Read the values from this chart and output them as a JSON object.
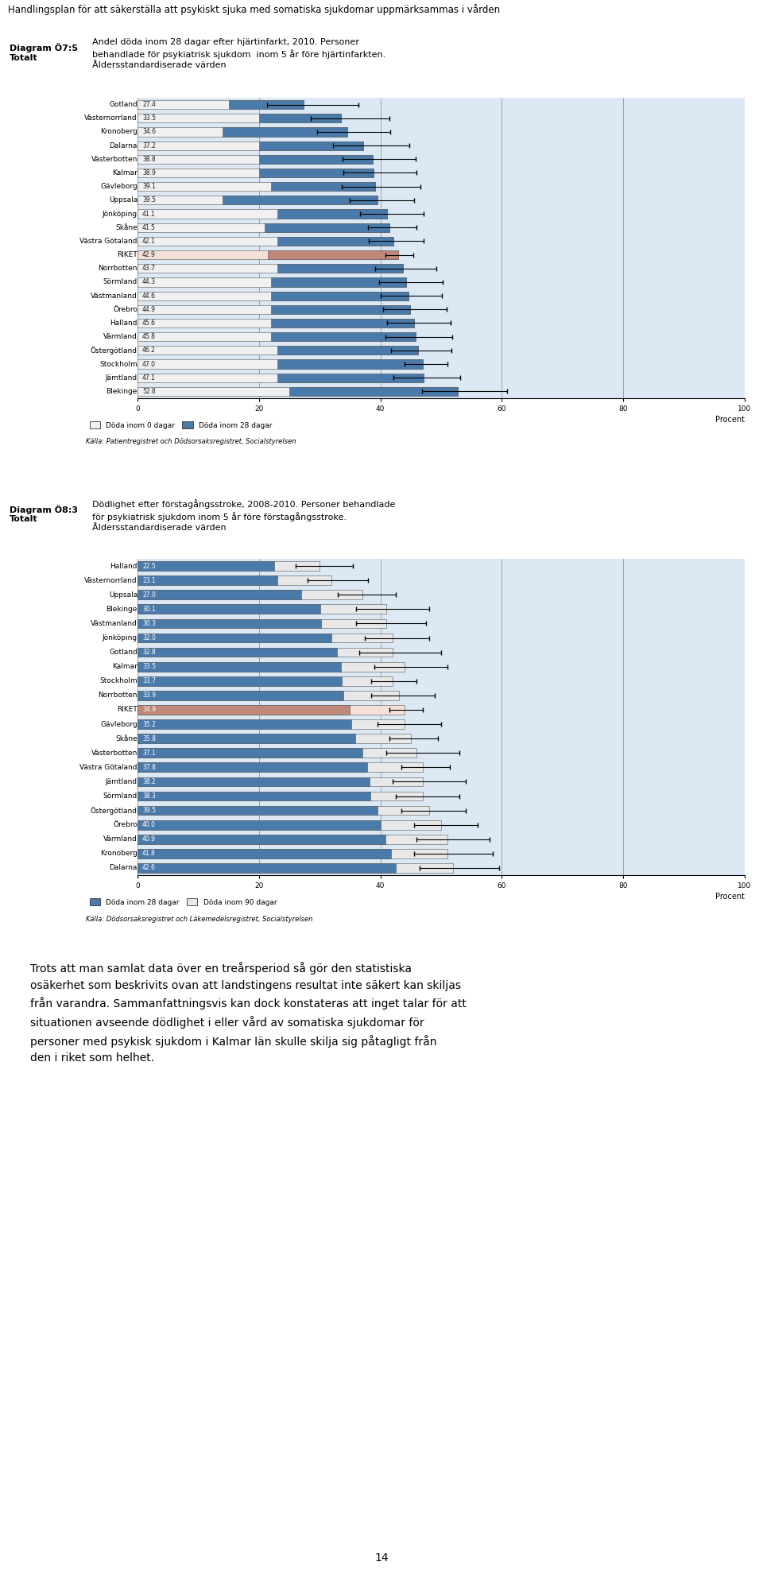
{
  "header": "Handlingsplan för att säkerställa att psykiskt sjuka med somatiska sjukdomar uppmärksammas i vården",
  "chart1": {
    "diagram_label": "Diagram Ö7:5\nTotalt",
    "title_line1": "Andel döda inom 28 dagar efter hjärtinfarkt, 2010. Personer",
    "title_line2": "behandlade för psykiatrisk sjukdom  inom 5 år före hjärtinfarkten.",
    "title_line3": "Åldersstandardiserade värden",
    "categories": [
      "Gotland",
      "Västernorrland",
      "Kronoberg",
      "Dalarna",
      "Västerbotten",
      "Kalmar",
      "Gävleborg",
      "Uppsala",
      "Jönköping",
      "Skåne",
      "Västra Götaland",
      "RIKET",
      "Norrbotten",
      "Sörmland",
      "Västmanland",
      "Örebro",
      "Halland",
      "Värmland",
      "Östergötland",
      "Stockholm",
      "Jämtland",
      "Blekinge"
    ],
    "values_total": [
      27.4,
      33.5,
      34.6,
      37.2,
      38.8,
      38.9,
      39.1,
      39.5,
      41.1,
      41.5,
      42.1,
      42.9,
      43.7,
      44.3,
      44.6,
      44.9,
      45.6,
      45.8,
      46.2,
      47.0,
      47.1,
      52.8
    ],
    "values_0day": [
      15.0,
      20.0,
      14.0,
      20.0,
      20.0,
      20.0,
      22.0,
      14.0,
      23.0,
      21.0,
      23.0,
      21.5,
      23.0,
      22.0,
      22.0,
      22.0,
      22.0,
      22.0,
      23.0,
      23.0,
      23.0,
      25.0
    ],
    "err_lo": [
      6.0,
      5.0,
      5.0,
      5.0,
      5.0,
      5.0,
      5.5,
      4.5,
      4.5,
      3.5,
      4.0,
      2.0,
      4.5,
      4.5,
      4.5,
      4.5,
      4.5,
      5.0,
      4.5,
      3.0,
      5.0,
      6.0
    ],
    "err_hi": [
      9.0,
      8.0,
      7.0,
      7.5,
      7.0,
      7.0,
      7.5,
      6.0,
      6.0,
      4.5,
      5.0,
      2.5,
      5.5,
      6.0,
      5.5,
      6.0,
      6.0,
      6.0,
      5.5,
      4.0,
      6.0,
      8.0
    ],
    "riket_index": 11,
    "bar0_color": "#f0f0f0",
    "bar28_color": "#4a7aaa",
    "riket_bar0_color": "#f5e0d8",
    "riket_bar28_color": "#c08878",
    "xlabel": "Procent",
    "xticks": [
      0,
      20,
      40,
      60,
      80,
      100
    ],
    "legend_0": "Döda inom 0 dagar",
    "legend_28": "Döda inom 28 dagar",
    "source": "Källa: Patientregistret och Dödsorsaksregistret, Socialstyrelsen",
    "bg_color": "#dce9f5"
  },
  "chart2": {
    "diagram_label": "Diagram Ö8:3\nTotalt",
    "title_line1": "Dödlighet efter förstagångsstroke, 2008-2010. Personer behandlade",
    "title_line2": "för psykiatrisk sjukdom inom 5 år före förstagångsstroke.",
    "title_line3": "Åldersstandardiserade värden",
    "categories": [
      "Halland",
      "Västernorrland",
      "Uppsala",
      "Blekinge",
      "Västmanland",
      "Jönköping",
      "Gotland",
      "Kalmar",
      "Stockholm",
      "Norrbotten",
      "RIKET",
      "Gävleborg",
      "Skåne",
      "Västerbotten",
      "Västra Götaland",
      "Jämtland",
      "Sörmland",
      "Östergötland",
      "Örebro",
      "Värmland",
      "Kronoberg",
      "Dalarna"
    ],
    "values_28day": [
      22.5,
      23.1,
      27.0,
      30.1,
      30.3,
      32.0,
      32.8,
      33.5,
      33.7,
      33.9,
      34.9,
      35.2,
      35.8,
      37.1,
      37.8,
      38.2,
      38.3,
      39.5,
      40.0,
      40.9,
      41.8,
      42.6
    ],
    "values_90day": [
      30.0,
      32.0,
      37.0,
      41.0,
      41.0,
      42.0,
      42.0,
      44.0,
      42.0,
      43.0,
      44.0,
      44.0,
      45.0,
      46.0,
      47.0,
      47.0,
      47.0,
      48.0,
      50.0,
      51.0,
      51.0,
      52.0
    ],
    "err_lo": [
      4.0,
      4.0,
      4.0,
      5.0,
      5.0,
      4.5,
      5.5,
      5.0,
      3.5,
      4.5,
      2.5,
      4.5,
      3.5,
      5.0,
      3.5,
      5.0,
      4.5,
      4.5,
      4.5,
      5.0,
      5.5,
      5.5
    ],
    "err_hi": [
      5.5,
      6.0,
      5.5,
      7.0,
      6.5,
      6.0,
      8.0,
      7.0,
      4.0,
      6.0,
      3.0,
      6.0,
      4.5,
      7.0,
      4.5,
      7.0,
      6.0,
      6.0,
      6.0,
      7.0,
      7.5,
      7.5
    ],
    "riket_index": 10,
    "bar28_color": "#4a7aaa",
    "bar90_color": "#e8e8e8",
    "riket_bar28_color": "#c08878",
    "riket_bar90_color": "#f5e0d8",
    "xlabel": "Procent",
    "xticks": [
      0,
      20,
      40,
      60,
      80,
      100
    ],
    "legend_28": "Döda inom 28 dagar",
    "legend_90": "Döda inom 90 dagar",
    "source": "Källa: Dödsorsaksregistret och Läkemedelsregistret, Socialstyrelsen",
    "bg_color": "#dce9f5"
  },
  "bottom_text": "Trots att man samlat data över en treårsperiod så gör den statistiska\nosäkerhet som beskrivits ovan att landstingens resultat inte säkert kan skiljas\nfrån varandra. Sammanfattningsvis kan dock konstateras att inget talar för att\nsituationen avseende dödlighet i eller vård av somatiska sjukdomar för\npersoner med psykisk sjukdom i Kalmar län skulle skilja sig påtagligt från\nden i riket som helhet.",
  "page_number": "14",
  "header_bg": "#e8e8e8",
  "page_bg": "#ffffff"
}
